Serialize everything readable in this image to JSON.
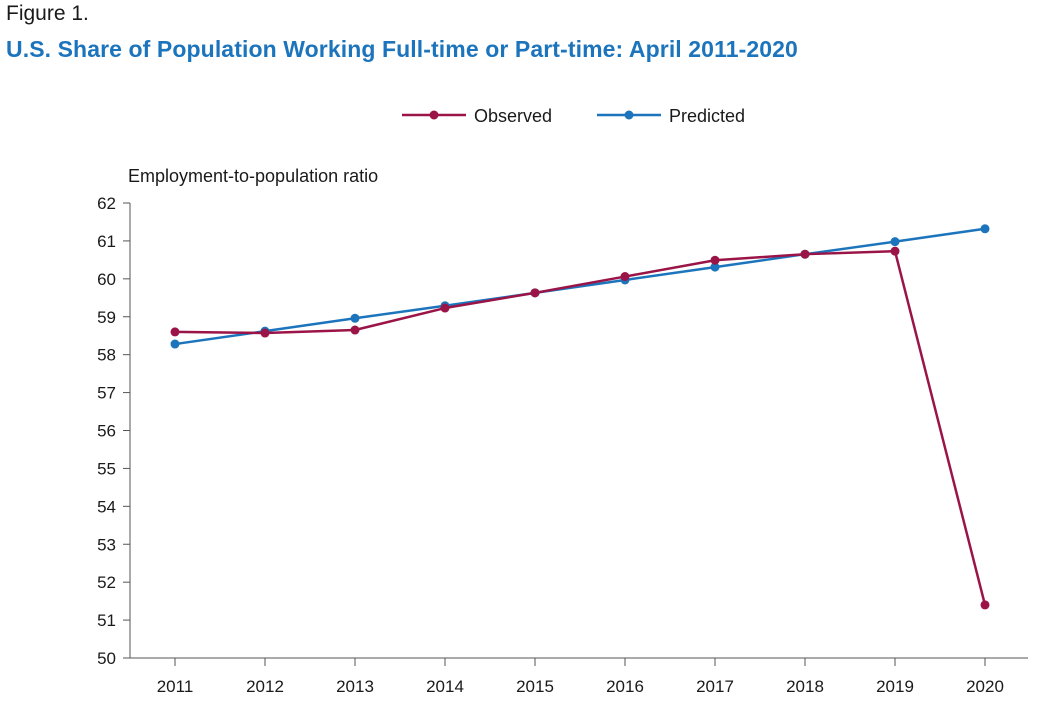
{
  "header": {
    "figure_label": "Figure 1.",
    "title": "U.S. Share of Population Working Full-time or Part-time: April 2011-2020"
  },
  "colors": {
    "title": "#1c75bc",
    "observed": "#9b1447",
    "predicted": "#1c75bc",
    "axis": "#555555"
  },
  "chart_data": {
    "type": "line",
    "title": "U.S. Share of Population Working Full-time or Part-time: April 2011-2020",
    "ylabel": "Employment-to-population ratio",
    "xlabel": "",
    "x": [
      "2011",
      "2012",
      "2013",
      "2014",
      "2015",
      "2016",
      "2017",
      "2018",
      "2019",
      "2020"
    ],
    "ylim": [
      50,
      62
    ],
    "yticks": [
      50,
      51,
      52,
      53,
      54,
      55,
      56,
      57,
      58,
      59,
      60,
      61,
      62
    ],
    "grid": false,
    "legend_position": "top-center",
    "series": [
      {
        "name": "Observed",
        "values": [
          58.6,
          58.57,
          58.65,
          59.23,
          59.63,
          60.06,
          60.49,
          60.65,
          60.73,
          51.4
        ]
      },
      {
        "name": "Predicted",
        "values": [
          58.28,
          58.62,
          58.96,
          59.29,
          59.63,
          59.97,
          60.31,
          60.65,
          60.98,
          61.32
        ]
      }
    ]
  }
}
